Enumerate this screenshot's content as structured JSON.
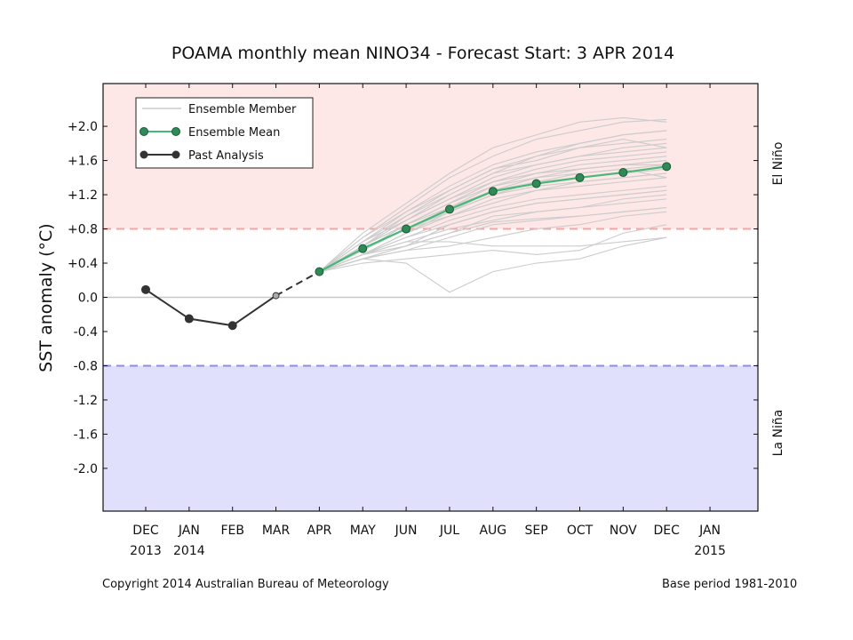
{
  "chart_data": {
    "type": "line",
    "title": "POAMA monthly mean NINO34 - Forecast Start: 3 APR 2014",
    "ylabel": "SST anomaly (°C)",
    "xlabel": "",
    "ylim": [
      -2.5,
      2.5
    ],
    "x_tick_labels": [
      {
        "line1": "DEC",
        "line2": "2013"
      },
      {
        "line1": "JAN",
        "line2": "2014"
      },
      {
        "line1": "FEB",
        "line2": ""
      },
      {
        "line1": "MAR",
        "line2": ""
      },
      {
        "line1": "APR",
        "line2": ""
      },
      {
        "line1": "MAY",
        "line2": ""
      },
      {
        "line1": "JUN",
        "line2": ""
      },
      {
        "line1": "JUL",
        "line2": ""
      },
      {
        "line1": "AUG",
        "line2": ""
      },
      {
        "line1": "SEP",
        "line2": ""
      },
      {
        "line1": "OCT",
        "line2": ""
      },
      {
        "line1": "NOV",
        "line2": ""
      },
      {
        "line1": "DEC",
        "line2": ""
      },
      {
        "line1": "JAN",
        "line2": "2015"
      }
    ],
    "y_ticks": [
      {
        "value": 2.0,
        "label": "+2.0"
      },
      {
        "value": 1.6,
        "label": "+1.6"
      },
      {
        "value": 1.2,
        "label": "+1.2"
      },
      {
        "value": 0.8,
        "label": "+0.8"
      },
      {
        "value": 0.4,
        "label": "+0.4"
      },
      {
        "value": 0.0,
        "label": "0.0"
      },
      {
        "value": -0.4,
        "label": "-0.4"
      },
      {
        "value": -0.8,
        "label": "-0.8"
      },
      {
        "value": -1.2,
        "label": "-1.2"
      },
      {
        "value": -1.6,
        "label": "-1.6"
      },
      {
        "value": -2.0,
        "label": "-2.0"
      }
    ],
    "thresholds": {
      "el_nino": 0.8,
      "la_nina": -0.8
    },
    "regions": {
      "el_nino_label": "El Niño",
      "la_nina_label": "La Niña"
    },
    "legend": {
      "placement": "top-left",
      "entries": [
        "Ensemble Member",
        "Ensemble Mean",
        "Past Analysis"
      ]
    },
    "series": [
      {
        "name": "Past Analysis",
        "x": [
          "DEC 2013",
          "JAN 2014",
          "FEB",
          "MAR"
        ],
        "values": [
          0.09,
          -0.25,
          -0.33,
          0.02
        ]
      },
      {
        "name": "Ensemble Mean",
        "x": [
          "APR",
          "MAY",
          "JUN",
          "JUL",
          "AUG",
          "SEP",
          "OCT",
          "NOV",
          "DEC"
        ],
        "values": [
          0.3,
          0.57,
          0.8,
          1.03,
          1.24,
          1.33,
          1.4,
          1.46,
          1.53
        ]
      }
    ],
    "ensemble_members": [
      [
        0.3,
        0.5,
        0.6,
        0.75,
        0.88,
        0.92,
        0.95,
        1.0,
        1.05
      ],
      [
        0.3,
        0.7,
        1.05,
        1.4,
        1.65,
        1.85,
        1.95,
        2.05,
        2.08
      ],
      [
        0.3,
        0.45,
        0.4,
        0.06,
        0.3,
        0.4,
        0.45,
        0.6,
        0.7
      ],
      [
        0.3,
        0.55,
        0.85,
        1.1,
        1.35,
        1.5,
        1.6,
        1.65,
        1.7
      ],
      [
        0.3,
        0.6,
        0.95,
        1.25,
        1.5,
        1.6,
        1.75,
        1.8,
        1.85
      ],
      [
        0.3,
        0.5,
        0.7,
        0.85,
        1.0,
        1.1,
        1.15,
        1.2,
        1.25
      ],
      [
        0.3,
        0.65,
        0.95,
        1.2,
        1.45,
        1.65,
        1.8,
        1.9,
        1.95
      ],
      [
        0.3,
        0.5,
        0.65,
        0.65,
        0.6,
        0.6,
        0.6,
        0.65,
        0.7
      ],
      [
        0.3,
        0.55,
        0.8,
        1.0,
        1.2,
        1.3,
        1.35,
        1.4,
        1.45
      ],
      [
        0.3,
        0.6,
        0.9,
        1.15,
        1.35,
        1.45,
        1.55,
        1.6,
        1.65
      ],
      [
        0.3,
        0.45,
        0.55,
        0.7,
        0.85,
        0.9,
        0.95,
        1.0,
        1.05
      ],
      [
        0.3,
        0.75,
        1.1,
        1.45,
        1.75,
        1.9,
        2.05,
        2.1,
        2.05
      ],
      [
        0.3,
        0.5,
        0.75,
        1.0,
        1.2,
        1.35,
        1.45,
        1.5,
        1.55
      ],
      [
        0.3,
        0.4,
        0.45,
        0.5,
        0.55,
        0.5,
        0.55,
        0.75,
        0.85
      ],
      [
        0.3,
        0.55,
        0.85,
        1.05,
        1.25,
        1.4,
        1.5,
        1.55,
        1.6
      ],
      [
        0.3,
        0.6,
        0.85,
        1.1,
        1.3,
        1.45,
        1.5,
        1.55,
        1.55
      ],
      [
        0.3,
        0.5,
        0.7,
        0.9,
        1.05,
        1.15,
        1.2,
        1.25,
        1.3
      ],
      [
        0.3,
        0.55,
        0.8,
        1.05,
        1.3,
        1.4,
        1.45,
        1.5,
        1.4
      ],
      [
        0.3,
        0.65,
        0.9,
        1.15,
        1.4,
        1.55,
        1.65,
        1.75,
        1.8
      ],
      [
        0.3,
        0.45,
        0.6,
        0.75,
        0.95,
        1.0,
        1.05,
        1.1,
        1.15
      ],
      [
        0.3,
        0.7,
        1.0,
        1.3,
        1.55,
        1.7,
        1.8,
        1.9,
        1.95
      ],
      [
        0.3,
        0.5,
        0.65,
        0.8,
        0.9,
        1.0,
        1.05,
        1.15,
        1.2
      ],
      [
        0.3,
        0.6,
        0.85,
        1.1,
        1.35,
        1.45,
        1.5,
        1.55,
        1.6
      ],
      [
        0.3,
        0.55,
        0.8,
        0.95,
        1.1,
        1.25,
        1.35,
        1.4,
        1.45
      ],
      [
        0.3,
        0.45,
        0.55,
        0.6,
        0.7,
        0.8,
        0.85,
        0.95,
        1.0
      ],
      [
        0.3,
        0.65,
        1.0,
        1.25,
        1.5,
        1.65,
        1.75,
        1.85,
        1.75
      ],
      [
        0.3,
        0.5,
        0.75,
        0.95,
        1.15,
        1.25,
        1.3,
        1.35,
        1.4
      ],
      [
        0.3,
        0.55,
        0.8,
        1.0,
        1.25,
        1.35,
        1.4,
        1.45,
        1.5
      ],
      [
        0.3,
        0.6,
        0.9,
        1.2,
        1.45,
        1.55,
        1.65,
        1.7,
        1.75
      ],
      [
        0.3,
        0.45,
        0.6,
        0.85,
        1.0,
        1.1,
        1.15,
        1.2,
        1.25
      ]
    ],
    "colors": {
      "el_nino_fill": "#fde7e7",
      "la_nina_fill": "#e0e0fc",
      "el_nino_line": "#f7a3a3",
      "la_nina_line": "#8c8cf0",
      "ensemble_member": "#cccccc",
      "ensemble_mean_line": "#48b878",
      "ensemble_mean_marker": "#2e8b57",
      "past_analysis": "#333333",
      "zero_line": "#c8c8c8"
    }
  },
  "footer": {
    "copyright": "Copyright 2014 Australian Bureau of Meteorology",
    "base_period": "Base period 1981-2010"
  }
}
